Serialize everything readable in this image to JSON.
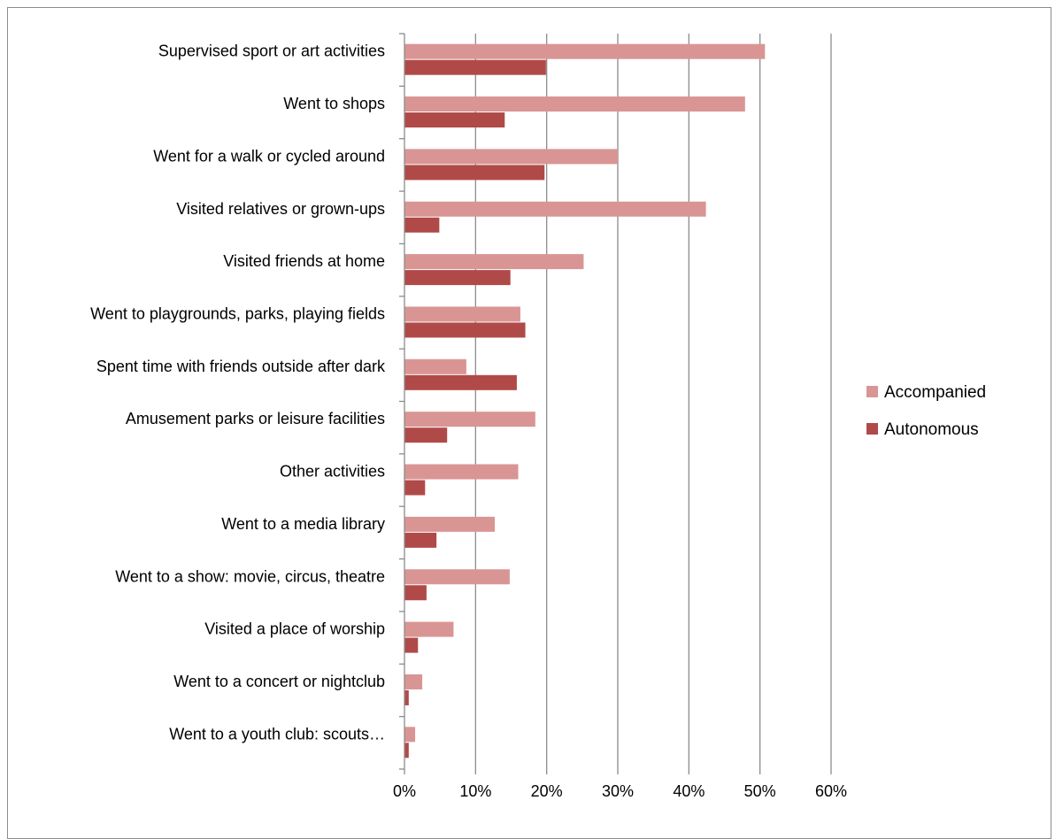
{
  "chart_data": {
    "type": "bar",
    "orientation": "horizontal",
    "title": "",
    "xlabel": "",
    "ylabel": "",
    "xlim": [
      0,
      0.6
    ],
    "x_ticks": [
      0,
      0.1,
      0.2,
      0.3,
      0.4,
      0.5,
      0.6
    ],
    "x_tick_labels": [
      "0%",
      "10%",
      "20%",
      "30%",
      "40%",
      "50%",
      "60%"
    ],
    "grid": "vertical",
    "legend_position": "right",
    "categories": [
      "Supervised sport or art activities",
      "Went to shops",
      "Went for a walk or cycled around",
      "Visited relatives or grown-ups",
      "Visited friends at home",
      "Went to playgrounds, parks, playing fields",
      "Spent time with friends outside after dark",
      "Amusement parks or leisure facilities",
      "Other activities",
      "Went to a media library",
      "Went to a show: movie, circus, theatre",
      "Visited a place of worship",
      "Went to a concert or nightclub",
      "Went to a youth club: scouts…"
    ],
    "series": [
      {
        "name": "Accompanied",
        "color": "#d99594",
        "values": [
          0.507,
          0.479,
          0.3,
          0.424,
          0.252,
          0.163,
          0.087,
          0.184,
          0.16,
          0.127,
          0.148,
          0.069,
          0.025,
          0.015
        ]
      },
      {
        "name": "Autonomous",
        "color": "#b04a48",
        "values": [
          0.199,
          0.141,
          0.197,
          0.049,
          0.149,
          0.17,
          0.158,
          0.06,
          0.029,
          0.045,
          0.031,
          0.019,
          0.006,
          0.006
        ]
      }
    ]
  }
}
